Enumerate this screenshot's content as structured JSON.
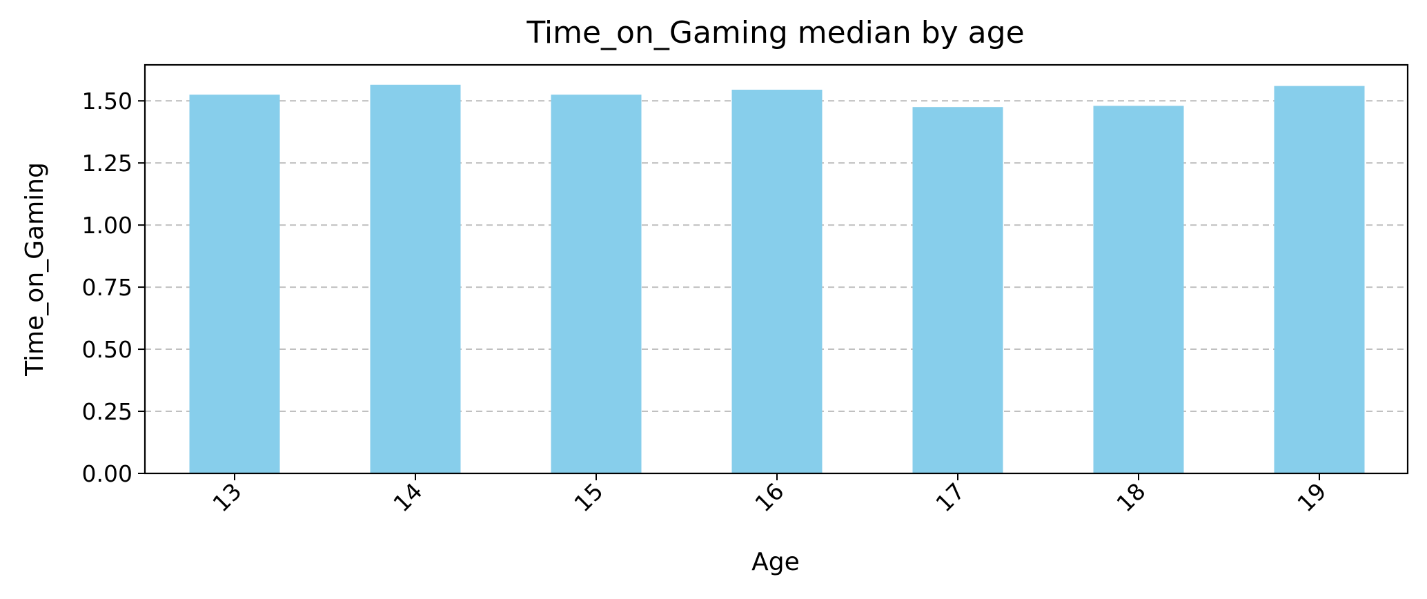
{
  "chart_data": {
    "type": "bar",
    "title": "Time_on_Gaming median by age",
    "xlabel": "Age",
    "ylabel": "Time_on_Gaming",
    "categories": [
      "13",
      "14",
      "15",
      "16",
      "17",
      "18",
      "19"
    ],
    "values": [
      1.525,
      1.565,
      1.525,
      1.545,
      1.475,
      1.48,
      1.56
    ],
    "ylim": [
      0,
      1.645
    ],
    "yticks": [
      "0.00",
      "0.25",
      "0.50",
      "0.75",
      "1.00",
      "1.25",
      "1.50"
    ],
    "xtick_rotation": "45 degrees",
    "grid": "horizontal dashed",
    "bar_color": "#87CEEB",
    "grid_color": "#c0c0c0"
  }
}
